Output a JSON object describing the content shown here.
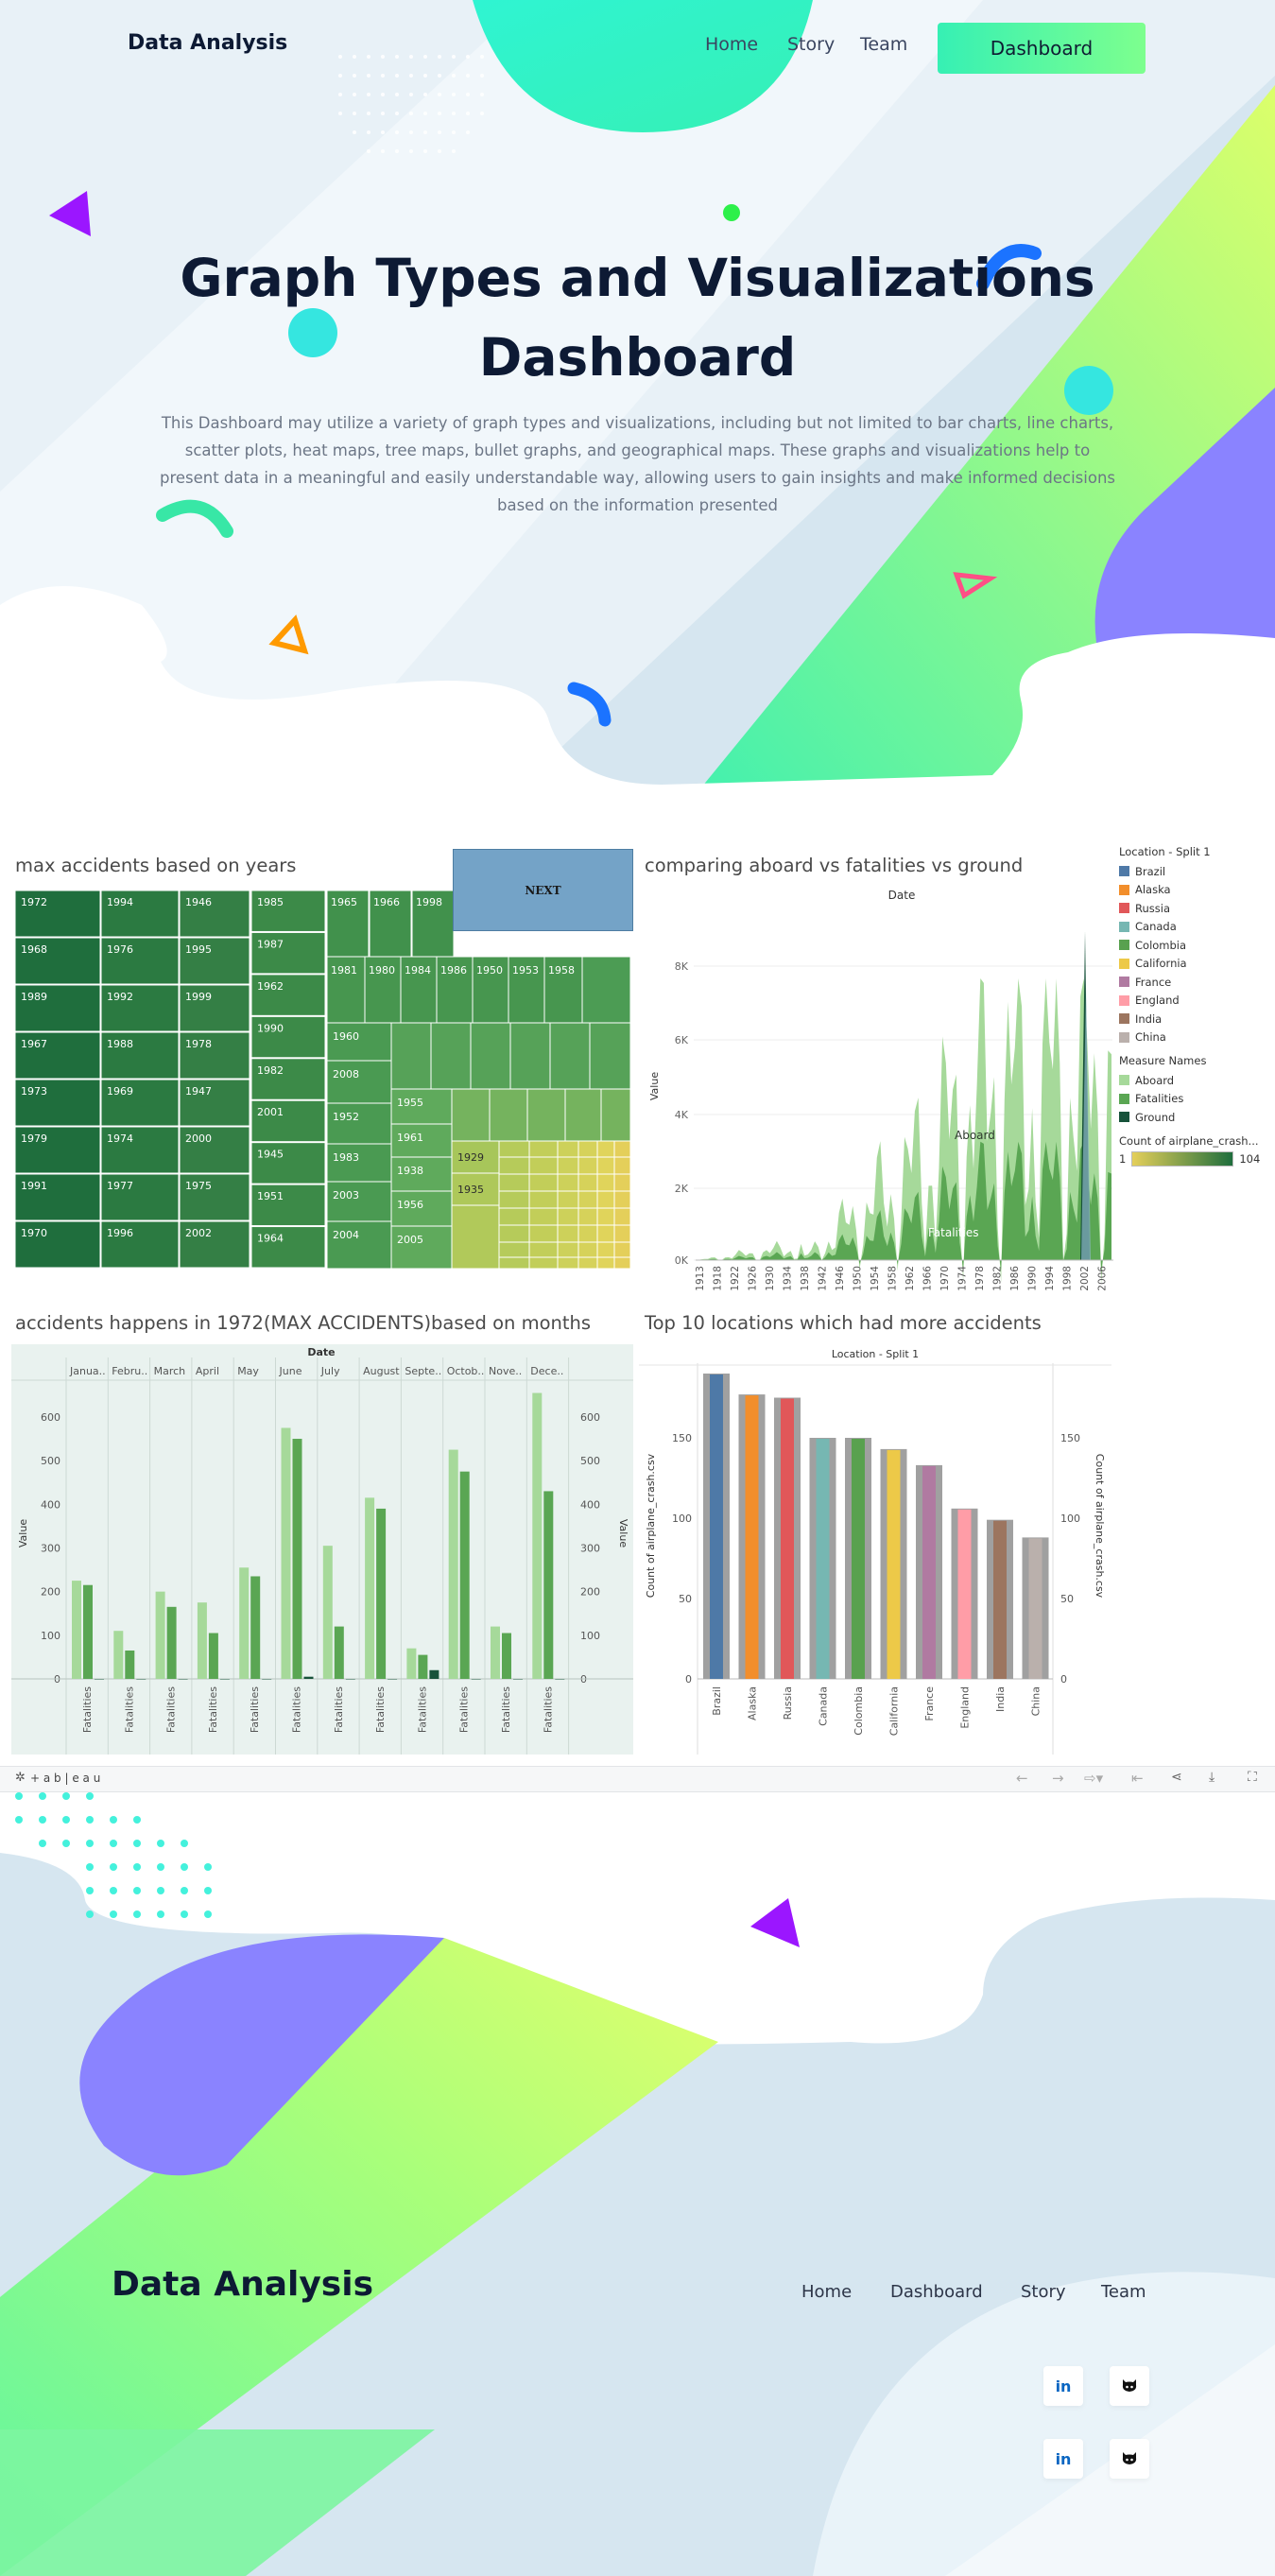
{
  "header": {
    "brand": "Data Analysis",
    "nav": [
      "Home",
      "Story",
      "Team"
    ],
    "cta": "Dashboard"
  },
  "hero": {
    "title_line1": "Graph Types and Visualizations",
    "title_line2": "Dashboard",
    "description": "This Dashboard may utilize a variety of graph types and visualizations, including but not limited to bar charts, line charts, scatter plots, heat maps, tree maps, bullet graphs, and geographical maps. These graphs and visualizations help to present data in a meaningful and easily understandable way, allowing users to gain insights and make informed decisions based on the information presented"
  },
  "colors": {
    "accent_green": "#36f0b4",
    "lime": "#d7ff6e",
    "purple": "#8a83ff",
    "navy": "#0d1a34",
    "treemap_dark": "#1f6e3d",
    "treemap_light": "#e4cf5a"
  },
  "dashboard": {
    "next_button": "NEXT",
    "treemap": {
      "title": "max accidents based on years",
      "labels": [
        "1972",
        "1968",
        "1989",
        "1967",
        "1973",
        "1979",
        "1991",
        "1970",
        "1994",
        "1976",
        "1992",
        "1988",
        "1969",
        "1974",
        "1977",
        "1996",
        "1946",
        "1995",
        "1999",
        "1978",
        "1947",
        "2000",
        "1975",
        "2002",
        "1985",
        "1987",
        "1962",
        "1990",
        "1982",
        "2001",
        "1945",
        "1951",
        "1964",
        "1965",
        "1966",
        "1998",
        "1981",
        "1980",
        "1984",
        "1986",
        "1950",
        "1953",
        "1958",
        "1960",
        "2008",
        "1952",
        "1983",
        "2003",
        "2004",
        "1955",
        "1961",
        "1938",
        "1956",
        "2005",
        "1929",
        "1935"
      ]
    },
    "area_chart": {
      "title": "comparing aboard vs fatalities vs ground",
      "header": "Date",
      "ylabel": "Value",
      "yticks": [
        "8K",
        "6K",
        "4K",
        "2K",
        "0K"
      ],
      "xticks": [
        "1913",
        "1918",
        "1922",
        "1926",
        "1930",
        "1934",
        "1938",
        "1942",
        "1946",
        "1950",
        "1954",
        "1958",
        "1962",
        "1966",
        "1970",
        "1974",
        "1978",
        "1982",
        "1986",
        "1990",
        "1994",
        "1998",
        "2002",
        "2006"
      ],
      "series_labels": [
        "Aboard",
        "Fatalities"
      ]
    },
    "legend": {
      "location_title": "Location - Split 1",
      "locations": [
        {
          "name": "Brazil",
          "color": "#4e79a7"
        },
        {
          "name": "Alaska",
          "color": "#f28e2b"
        },
        {
          "name": "Russia",
          "color": "#e15759"
        },
        {
          "name": "Canada",
          "color": "#76b7b2"
        },
        {
          "name": "Colombia",
          "color": "#59a14f"
        },
        {
          "name": "California",
          "color": "#edc948"
        },
        {
          "name": "France",
          "color": "#b07aa1"
        },
        {
          "name": "England",
          "color": "#ff9da7"
        },
        {
          "name": "India",
          "color": "#9c755f"
        },
        {
          "name": "China",
          "color": "#bab0ac"
        }
      ],
      "measure_title": "Measure Names",
      "measures": [
        {
          "name": "Aboard",
          "color": "#a6d99a"
        },
        {
          "name": "Fatalities",
          "color": "#5aa653"
        },
        {
          "name": "Ground",
          "color": "#17523a"
        }
      ],
      "count_title": "Count of airplane_crash...",
      "count_min": "1",
      "count_max": "104"
    },
    "month_chart": {
      "title": "accidents happens in 1972(MAX ACCIDENTS)based on months",
      "header": "Date",
      "ylabel": "Value",
      "yticks": [
        "600",
        "500",
        "400",
        "300",
        "200",
        "100",
        "0"
      ],
      "months": [
        "Janua..",
        "Febru..",
        "March",
        "April",
        "May",
        "June",
        "July",
        "August",
        "Septe..",
        "Octob..",
        "Nove..",
        "Dece.."
      ],
      "bar_label": "Fatalities",
      "chart_data": {
        "type": "bar",
        "categories": [
          "Janua..",
          "Febru..",
          "March",
          "April",
          "May",
          "June",
          "July",
          "August",
          "Septe..",
          "Octob..",
          "Nove..",
          "Dece.."
        ],
        "series": [
          {
            "name": "Aboard",
            "values": [
              225,
              110,
              200,
              175,
              255,
              575,
              305,
              415,
              70,
              525,
              120,
              655
            ]
          },
          {
            "name": "Fatalities",
            "values": [
              215,
              65,
              165,
              105,
              235,
              550,
              120,
              390,
              55,
              475,
              105,
              430
            ]
          },
          {
            "name": "Ground",
            "values": [
              0,
              0,
              0,
              0,
              0,
              5,
              0,
              0,
              20,
              0,
              0,
              0
            ]
          }
        ],
        "ylim": [
          0,
          680
        ]
      }
    },
    "location_chart": {
      "title": "Top 10 locations which had more accidents",
      "header": "Location - Split 1",
      "ylabel": "Count of airplane_crash.csv",
      "yticks": [
        "150",
        "100",
        "50",
        "0"
      ],
      "chart_data": {
        "type": "bar",
        "categories": [
          "Brazil",
          "Alaska",
          "Russia",
          "Canada",
          "Colombia",
          "California",
          "France",
          "England",
          "India",
          "China"
        ],
        "values": [
          190,
          177,
          175,
          150,
          150,
          143,
          133,
          106,
          99,
          88
        ],
        "ylim": [
          0,
          200
        ]
      }
    },
    "toolbar": {
      "logo": "+ a b | e a u"
    }
  },
  "footer": {
    "brand": "Data Analysis",
    "links": [
      "Home",
      "Dashboard",
      "Story",
      "Team"
    ],
    "linkedin_label": "in"
  }
}
